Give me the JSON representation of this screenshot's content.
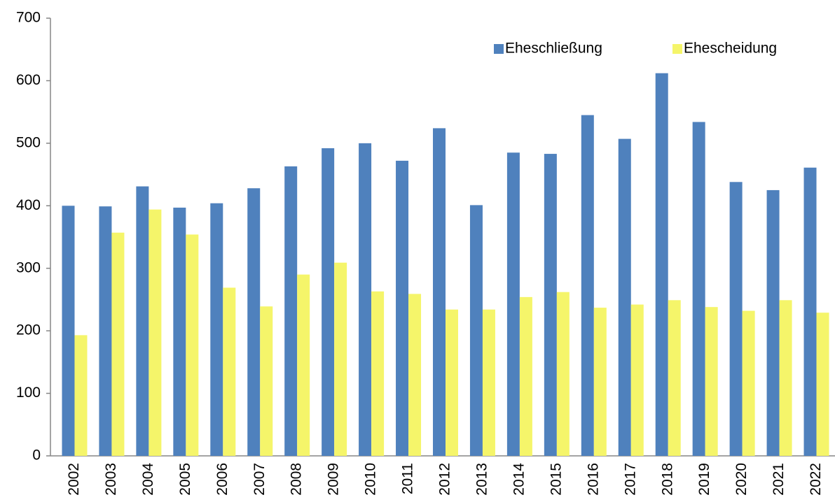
{
  "chart_data": {
    "type": "bar",
    "categories": [
      "2002",
      "2003",
      "2004",
      "2005",
      "2006",
      "2007",
      "2008",
      "2009",
      "2010",
      "2011",
      "2012",
      "2013",
      "2014",
      "2015",
      "2016",
      "2017",
      "2018",
      "2019",
      "2020",
      "2021",
      "2022"
    ],
    "series": [
      {
        "name": "Eheschließung",
        "color": "#4f81bd",
        "values": [
          400,
          399,
          431,
          397,
          404,
          428,
          463,
          492,
          500,
          472,
          524,
          401,
          485,
          483,
          545,
          507,
          612,
          534,
          438,
          425,
          461
        ]
      },
      {
        "name": "Ehescheidung",
        "color": "#f5f56a",
        "values": [
          193,
          357,
          394,
          354,
          269,
          239,
          290,
          309,
          263,
          259,
          234,
          234,
          254,
          262,
          237,
          242,
          249,
          238,
          232,
          249,
          229
        ]
      }
    ],
    "ylim": [
      0,
      700
    ],
    "yticks": [
      0,
      100,
      200,
      300,
      400,
      500,
      600,
      700
    ],
    "grid": false,
    "legend": "top-right"
  }
}
